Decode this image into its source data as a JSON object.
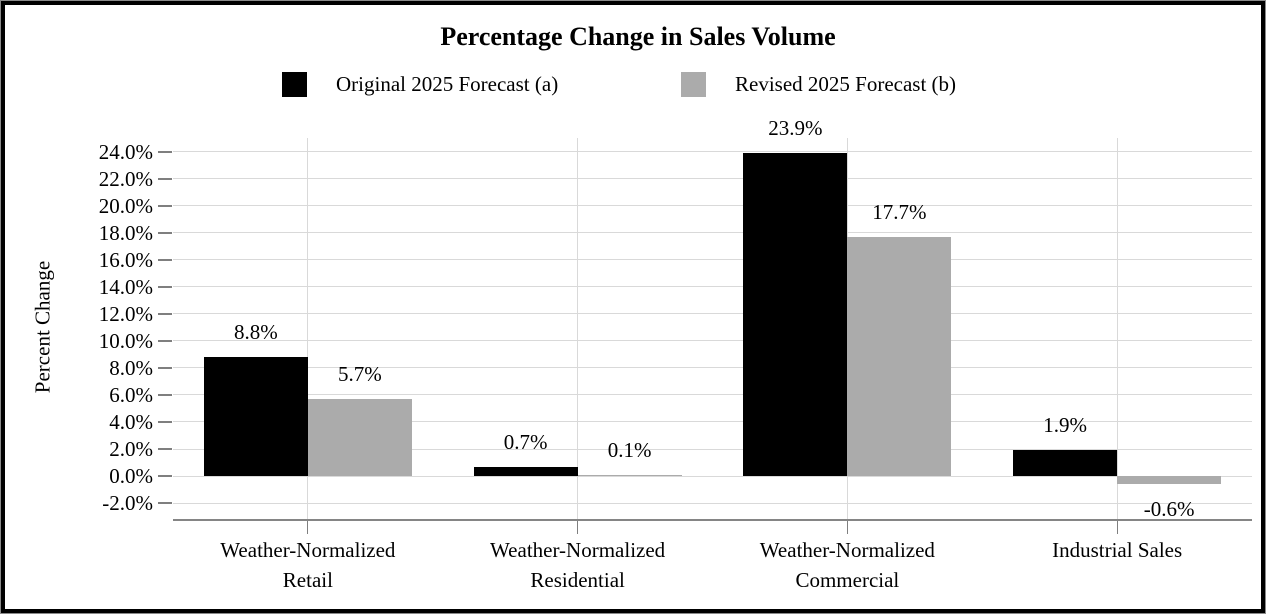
{
  "chart_data": {
    "type": "bar",
    "title": "Percentage Change in Sales Volume",
    "ylabel": "Percent Change",
    "xlabel": "",
    "categories": [
      "Weather-Normalized\nRetail",
      "Weather-Normalized\nResidential",
      "Weather-Normalized\nCommercial",
      "Industrial Sales"
    ],
    "series": [
      {
        "name": "Original 2025 Forecast (a)",
        "color": "#000000",
        "values": [
          8.8,
          0.7,
          23.9,
          1.9
        ],
        "labels": [
          "8.8%",
          "0.7%",
          "23.9%",
          "1.9%"
        ]
      },
      {
        "name": "Revised 2025 Forecast (b)",
        "color": "#ABABAB",
        "values": [
          5.7,
          0.1,
          17.7,
          -0.6
        ],
        "labels": [
          "5.7%",
          "0.1%",
          "17.7%",
          "-0.6%"
        ]
      }
    ],
    "ylim": [
      -3.25,
      25.0
    ],
    "yticks": [
      -2,
      0,
      2,
      4,
      6,
      8,
      10,
      12,
      14,
      16,
      18,
      20,
      22,
      24
    ],
    "ytick_labels": [
      "-2.0%",
      "0.0%",
      "2.0%",
      "4.0%",
      "6.0%",
      "8.0%",
      "10.0%",
      "12.0%",
      "14.0%",
      "16.0%",
      "18.0%",
      "20.0%",
      "22.0%",
      "24.0%"
    ],
    "grid": true,
    "legend_position": "top"
  },
  "colors": {
    "grid": "#D9D9D9",
    "axis_line": "#858585",
    "tick": "#7F7F7F",
    "frame": "#000000",
    "background": "#FFFFFF"
  }
}
